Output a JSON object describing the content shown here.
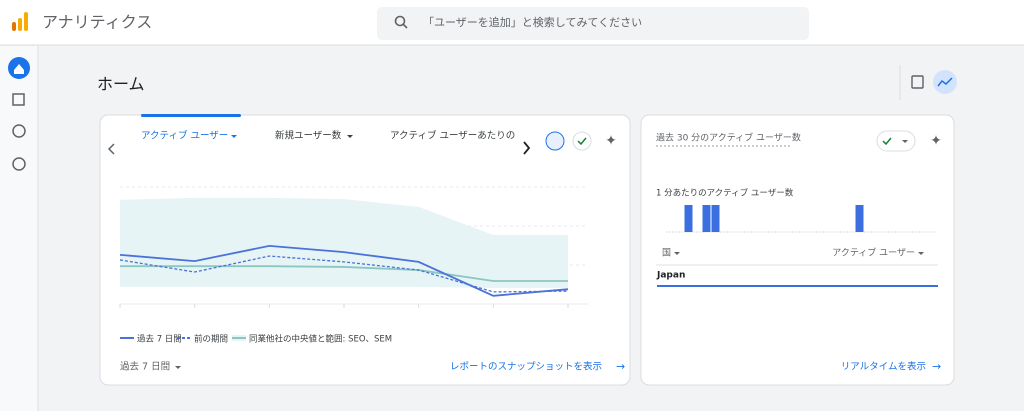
{
  "header": {
    "title": "アナリティクス",
    "search_placeholder": "「ユーザーを追加」と検索してみてください"
  },
  "page_title": "ホーム",
  "card1": {
    "tabs": [
      "アクティブ ユーザー",
      "新規ユーザー数",
      "アクティブ ユーザーあたりの"
    ],
    "date_range": "過去 7 日間",
    "link": "レポートのスナップショットを表示"
  },
  "card2": {
    "title": "過去 30 分のアクティブ ユーザー数",
    "table_headers": [
      "国",
      "アクティブ ユーザー"
    ],
    "rows": [
      "Japan"
    ],
    "link": "リアルタイムを表示"
  },
  "chart_data": [
    {
      "type": "line",
      "ylim": [
        0,
        3
      ],
      "yticks": [
        0,
        1,
        2,
        3
      ],
      "grid": true,
      "series": [
        {
          "name": "過去 7 日間",
          "color": "#4a72d9",
          "values": [
            1.26,
            1.1,
            1.49,
            1.33,
            1.08,
            0.21,
            0.38
          ]
        },
        {
          "name": "前の期間",
          "color": "#4a72d9",
          "dashed": true,
          "values": [
            1.13,
            0.82,
            1.23,
            1.08,
            0.87,
            0.31,
            0.33
          ]
        },
        {
          "name": "同業他社の中央値と範囲: SEO、SEM",
          "color": "#8cc6c0",
          "band_color": "#e6f4f6",
          "values": [
            0.97,
            0.97,
            0.97,
            0.95,
            0.87,
            0.59,
            0.59
          ],
          "range_high": [
            2.67,
            2.72,
            2.72,
            2.69,
            2.49,
            1.77,
            1.77
          ],
          "range_low": [
            0.44,
            0.44,
            0.44,
            0.44,
            0.44,
            0.41,
            0.41
          ]
        }
      ]
    },
    {
      "type": "bar",
      "title": "1 分あたりのアクティブ ユーザー数",
      "color": "#3b6fe0",
      "ylim": [
        0,
        1
      ],
      "values": [
        0,
        0,
        1,
        0,
        1,
        1,
        0,
        0,
        0,
        0,
        0,
        0,
        0,
        0,
        0,
        0,
        0,
        0,
        0,
        0,
        0,
        1,
        0,
        0,
        0,
        0,
        0,
        0,
        0,
        0
      ]
    }
  ]
}
